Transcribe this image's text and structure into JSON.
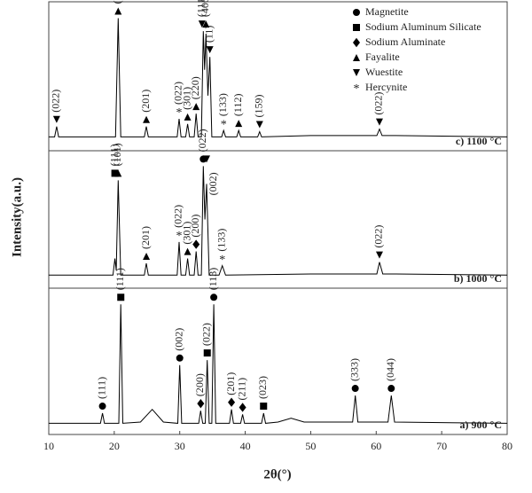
{
  "chart_data": {
    "type": "line",
    "color": "#000000",
    "x_label": "2θ(°)",
    "y_label": "Intensity(a.u.)",
    "xlim": [
      10,
      80
    ],
    "xticks": [
      10,
      20,
      30,
      40,
      50,
      60,
      70,
      80
    ],
    "legend": [
      {
        "name": "Magnetite",
        "marker": "circle"
      },
      {
        "name": "Sodium Aluminum Silicate",
        "marker": "square"
      },
      {
        "name": "Sodium Aluminate",
        "marker": "diamond"
      },
      {
        "name": "Fayalite",
        "marker": "triangle-up"
      },
      {
        "name": "Wuestite",
        "marker": "triangle-down"
      },
      {
        "name": "Hercynite",
        "marker": "star"
      }
    ],
    "panels": [
      {
        "label": "c) 1100 °C",
        "ylim": [
          0,
          110
        ],
        "x": [
          10,
          10.9,
          11.2,
          11.5,
          20.2,
          20.6,
          21.0,
          24.6,
          24.9,
          25.2,
          29.6,
          29.9,
          30.2,
          30.9,
          31.2,
          31.5,
          32.2,
          32.5,
          32.8,
          33.3,
          33.6,
          33.8,
          34.0,
          34.3,
          34.6,
          34.9,
          36.4,
          36.7,
          37.0,
          38.7,
          39.0,
          39.3,
          41.9,
          42.2,
          42.5,
          50,
          60.1,
          60.5,
          60.9,
          63,
          80
        ],
        "values": [
          8,
          8,
          16,
          8,
          8,
          100,
          8,
          8,
          16,
          8,
          8,
          22,
          8,
          8,
          18,
          8,
          8,
          26,
          8,
          8,
          90,
          60,
          88,
          40,
          70,
          8,
          8,
          13,
          8,
          8,
          13,
          8,
          8,
          12,
          8,
          9,
          9,
          14,
          9,
          9,
          8
        ],
        "annotations": [
          {
            "x": 11.2,
            "label": "(022)",
            "marker": "triangle-down"
          },
          {
            "x": 20.6,
            "label": "(101)",
            "marker": "triangle-up"
          },
          {
            "x": 24.9,
            "label": "(201)",
            "marker": "triangle-up"
          },
          {
            "x": 29.9,
            "label": "(022)",
            "marker": "star"
          },
          {
            "x": 31.2,
            "label": "(301)",
            "marker": "triangle-up"
          },
          {
            "x": 32.5,
            "label": "(220)",
            "marker": "triangle-up"
          },
          {
            "x": 33.4,
            "label": "(111)",
            "marker": "triangle-down"
          },
          {
            "x": 34.0,
            "label": "(400)",
            "marker": "triangle-up"
          },
          {
            "x": 34.6,
            "label": "(11)",
            "marker": "triangle-down"
          },
          {
            "x": 36.7,
            "label": "(133)",
            "marker": "star"
          },
          {
            "x": 39.0,
            "label": "(112)",
            "marker": "triangle-up"
          },
          {
            "x": 42.2,
            "label": "(159)",
            "marker": "triangle-down"
          },
          {
            "x": 60.5,
            "label": "(022)",
            "marker": "triangle-down"
          }
        ],
        "extra_labels": [
          {
            "x": 35.2,
            "label": "(002)"
          }
        ]
      },
      {
        "label": "b) 1000 °C",
        "ylim": [
          0,
          110
        ],
        "x": [
          10,
          19.8,
          20.1,
          20.3,
          20.6,
          21.0,
          24.6,
          24.9,
          25.2,
          29.6,
          29.9,
          30.2,
          30.9,
          31.2,
          31.5,
          32.2,
          32.5,
          32.8,
          33.3,
          33.6,
          33.85,
          34.1,
          34.5,
          36.0,
          36.5,
          37.0,
          50,
          60.1,
          60.5,
          61.0,
          63,
          80
        ],
        "values": [
          8,
          8,
          22,
          12,
          88,
          8,
          8,
          18,
          8,
          8,
          36,
          8,
          8,
          22,
          8,
          8,
          28,
          8,
          8,
          100,
          55,
          85,
          8,
          8,
          16,
          8,
          9,
          9,
          19,
          9,
          9,
          8
        ],
        "annotations": [
          {
            "x": 20.1,
            "label": "(111)",
            "marker": "square"
          },
          {
            "x": 20.6,
            "label": "(101)",
            "marker": "triangle-up"
          },
          {
            "x": 24.9,
            "label": "(201)",
            "marker": "triangle-up"
          },
          {
            "x": 29.9,
            "label": "(022)",
            "marker": "star"
          },
          {
            "x": 31.2,
            "label": "(301)",
            "marker": "triangle-up"
          },
          {
            "x": 32.5,
            "label": "(200)",
            "marker": "diamond"
          },
          {
            "x": 33.6,
            "label": "(022)",
            "marker": "circle"
          },
          {
            "x": 34.1,
            "label": null,
            "marker": "triangle-down"
          },
          {
            "x": 36.5,
            "label": "(133)",
            "marker": "star"
          },
          {
            "x": 60.5,
            "label": "(022)",
            "marker": "triangle-down"
          }
        ],
        "extra_labels": []
      },
      {
        "label": "a) 900 °C",
        "ylim": [
          0,
          110
        ],
        "x": [
          10,
          17.9,
          18.2,
          18.5,
          20.7,
          21.0,
          21.3,
          24,
          25.8,
          27.5,
          29.7,
          30.0,
          30.3,
          32.9,
          33.2,
          33.5,
          33.9,
          34.2,
          34.5,
          34.9,
          35.2,
          35.5,
          37.6,
          37.9,
          38.2,
          39.3,
          39.6,
          39.9,
          42.5,
          42.8,
          43.1,
          45,
          47,
          49,
          56.4,
          56.8,
          57.2,
          61.8,
          62.3,
          62.8,
          80
        ],
        "values": [
          6,
          6,
          14,
          6,
          6,
          100,
          6,
          7,
          17,
          7,
          6,
          52,
          6,
          6,
          16,
          6,
          6,
          56,
          6,
          6,
          100,
          6,
          6,
          17,
          6,
          6,
          13,
          6,
          6,
          14,
          6,
          7,
          10,
          7,
          7,
          28,
          7,
          7,
          28,
          7,
          6
        ],
        "annotations": [
          {
            "x": 18.2,
            "label": "(111)",
            "marker": "circle"
          },
          {
            "x": 21.0,
            "label": "(111)",
            "marker": "square"
          },
          {
            "x": 30.0,
            "label": "(002)",
            "marker": "circle"
          },
          {
            "x": 33.2,
            "label": "(200)",
            "marker": "diamond"
          },
          {
            "x": 34.2,
            "label": "(022)",
            "marker": "square"
          },
          {
            "x": 35.2,
            "label": "(113)",
            "marker": "circle"
          },
          {
            "x": 37.9,
            "label": "(201)",
            "marker": "diamond"
          },
          {
            "x": 39.6,
            "label": "(211)",
            "marker": "diamond"
          },
          {
            "x": 42.8,
            "label": "(023)",
            "marker": "square"
          },
          {
            "x": 56.8,
            "label": "(333)",
            "marker": "circle"
          },
          {
            "x": 62.3,
            "label": "(044)",
            "marker": "circle"
          }
        ],
        "extra_labels": []
      }
    ]
  }
}
